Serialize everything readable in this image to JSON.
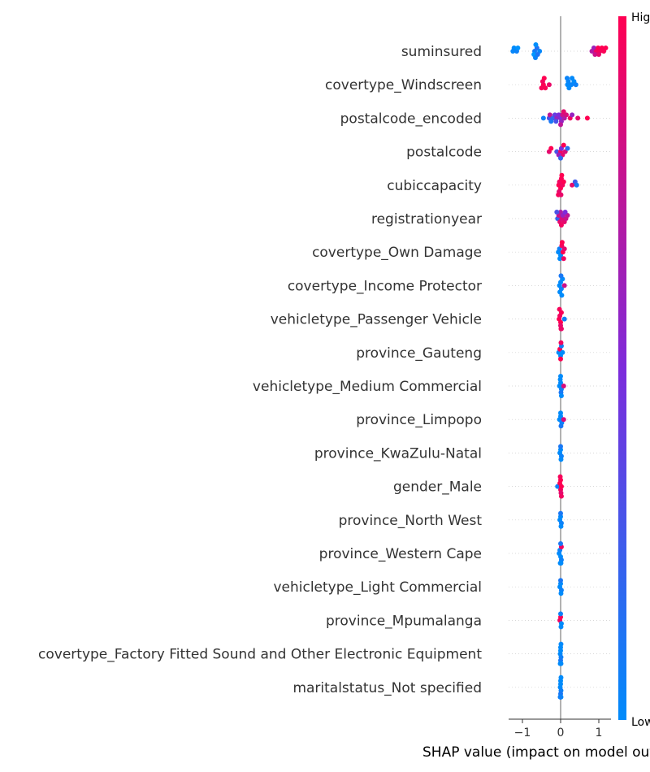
{
  "chart_data": {
    "type": "scatter",
    "subtype": "beeswarm",
    "xlabel": "SHAP value (impact on model output)",
    "xlim": [
      -1.35,
      1.35
    ],
    "xticks": [
      -1,
      0,
      1
    ],
    "xtick_labels": [
      "−1",
      "0",
      "1"
    ],
    "zero_line": true,
    "grid": false,
    "colorbar": {
      "high_label": "High",
      "low_label": "Low",
      "high_color": "#ff0052",
      "mid_color": "#7d2bdb",
      "low_color": "#008bfb",
      "placement": "right"
    },
    "features": [
      {
        "name": "suminsured",
        "points": [
          [
            -1.15,
            0.05
          ],
          [
            -1.22,
            0.0
          ],
          [
            -1.12,
            -0.04
          ],
          [
            -1.25,
            0.02
          ],
          [
            -0.68,
            0.08
          ],
          [
            -0.62,
            0.14
          ],
          [
            -0.55,
            0.02
          ],
          [
            -0.7,
            -0.06
          ],
          [
            -0.65,
            -0.02
          ],
          [
            -0.6,
            0.12
          ],
          [
            -0.66,
            0.04
          ],
          [
            0.82,
            0.7
          ],
          [
            0.87,
            0.62
          ],
          [
            0.93,
            0.95
          ],
          [
            0.98,
            1.0
          ],
          [
            1.03,
            0.96
          ],
          [
            1.08,
            1.0
          ],
          [
            1.13,
            0.98
          ],
          [
            1.18,
            1.0
          ],
          [
            0.9,
            0.8
          ],
          [
            1.0,
            0.9
          ]
        ]
      },
      {
        "name": "covertype_Windscreen",
        "points": [
          [
            -0.45,
            1.0
          ],
          [
            -0.47,
            0.95
          ],
          [
            -0.4,
            0.98
          ],
          [
            -0.43,
            1.0
          ],
          [
            -0.3,
            0.92
          ],
          [
            -0.5,
            0.97
          ],
          [
            0.18,
            0.0
          ],
          [
            0.2,
            0.02
          ],
          [
            0.28,
            0.03
          ],
          [
            0.35,
            0.0
          ],
          [
            0.4,
            0.05
          ],
          [
            0.22,
            0.0
          ],
          [
            0.3,
            0.01
          ],
          [
            0.17,
            0.04
          ]
        ]
      },
      {
        "name": "postalcode_encoded",
        "points": [
          [
            -0.45,
            0.05
          ],
          [
            -0.3,
            0.3
          ],
          [
            -0.28,
            0.75
          ],
          [
            -0.25,
            0.1
          ],
          [
            -0.2,
            0.2
          ],
          [
            -0.15,
            0.4
          ],
          [
            -0.1,
            0.6
          ],
          [
            -0.05,
            0.5
          ],
          [
            0.0,
            0.5
          ],
          [
            0.02,
            0.6
          ],
          [
            0.05,
            0.8
          ],
          [
            0.08,
            0.9
          ],
          [
            0.1,
            0.7
          ],
          [
            0.15,
            0.85
          ],
          [
            0.25,
            0.95
          ],
          [
            0.3,
            0.6
          ],
          [
            0.45,
            0.9
          ],
          [
            0.7,
            1.0
          ],
          [
            -0.12,
            0.3
          ],
          [
            0.0,
            0.75
          ]
        ]
      },
      {
        "name": "postalcode",
        "points": [
          [
            -0.3,
            0.9
          ],
          [
            -0.25,
            1.0
          ],
          [
            -0.1,
            0.3
          ],
          [
            0.0,
            0.95
          ],
          [
            0.02,
            0.5
          ],
          [
            0.05,
            0.9
          ],
          [
            0.08,
            1.0
          ],
          [
            0.12,
            0.85
          ],
          [
            0.18,
            0.15
          ],
          [
            -0.05,
            0.6
          ],
          [
            0.0,
            0.2
          ]
        ]
      },
      {
        "name": "cubiccapacity",
        "points": [
          [
            -0.05,
            1.0
          ],
          [
            -0.03,
            0.95
          ],
          [
            0.0,
            1.0
          ],
          [
            0.02,
            0.98
          ],
          [
            -0.04,
            0.9
          ],
          [
            0.03,
            1.0
          ],
          [
            0.05,
            0.95
          ],
          [
            0.08,
            1.0
          ],
          [
            0.3,
            0.9
          ],
          [
            0.38,
            0.25
          ],
          [
            0.42,
            0.1
          ],
          [
            -0.06,
            0.97
          ],
          [
            0.01,
            0.92
          ]
        ]
      },
      {
        "name": "registrationyear",
        "points": [
          [
            -0.08,
            0.2
          ],
          [
            -0.05,
            0.8
          ],
          [
            -0.02,
            0.9
          ],
          [
            0.0,
            0.7
          ],
          [
            0.03,
            0.85
          ],
          [
            0.06,
            0.6
          ],
          [
            0.1,
            0.9
          ],
          [
            0.14,
            0.8
          ],
          [
            0.18,
            0.75
          ],
          [
            -0.1,
            0.3
          ],
          [
            0.02,
            0.95
          ],
          [
            0.12,
            0.5
          ]
        ]
      },
      {
        "name": "covertype_Own Damage",
        "points": [
          [
            -0.06,
            0.0
          ],
          [
            -0.03,
            0.05
          ],
          [
            0.0,
            0.0
          ],
          [
            0.03,
            0.95
          ],
          [
            0.06,
            1.0
          ],
          [
            0.1,
            0.9
          ],
          [
            -0.02,
            0.0
          ],
          [
            0.04,
            1.0
          ],
          [
            0.08,
            0.95
          ]
        ]
      },
      {
        "name": "covertype_Income Protector",
        "points": [
          [
            -0.03,
            0.0
          ],
          [
            0.0,
            0.0
          ],
          [
            0.02,
            0.05
          ],
          [
            0.05,
            0.0
          ],
          [
            0.1,
            0.8
          ],
          [
            -0.02,
            0.0
          ],
          [
            0.01,
            0.1
          ],
          [
            0.03,
            0.0
          ]
        ]
      },
      {
        "name": "vehicletype_Passenger Vehicle",
        "points": [
          [
            -0.04,
            1.0
          ],
          [
            -0.02,
            0.95
          ],
          [
            0.0,
            1.0
          ],
          [
            0.02,
            0.98
          ],
          [
            0.0,
            0.9
          ],
          [
            0.1,
            0.05
          ],
          [
            -0.03,
            0.97
          ],
          [
            0.01,
            1.0
          ],
          [
            0.02,
            0.92
          ]
        ]
      },
      {
        "name": "province_Gauteng",
        "points": [
          [
            -0.05,
            0.0
          ],
          [
            -0.02,
            1.0
          ],
          [
            0.0,
            0.0
          ],
          [
            0.02,
            0.05
          ],
          [
            0.05,
            0.0
          ],
          [
            0.0,
            1.0
          ],
          [
            0.01,
            0.95
          ]
        ]
      },
      {
        "name": "vehicletype_Medium Commercial",
        "points": [
          [
            -0.03,
            0.0
          ],
          [
            0.0,
            0.0
          ],
          [
            0.02,
            0.05
          ],
          [
            0.08,
            0.85
          ],
          [
            -0.01,
            0.0
          ],
          [
            0.01,
            0.1
          ],
          [
            0.0,
            0.0
          ],
          [
            0.02,
            0.0
          ]
        ]
      },
      {
        "name": "province_Limpopo",
        "points": [
          [
            -0.03,
            0.0
          ],
          [
            0.0,
            0.0
          ],
          [
            0.03,
            0.05
          ],
          [
            0.08,
            0.85
          ],
          [
            0.0,
            0.0
          ],
          [
            0.01,
            0.1
          ]
        ]
      },
      {
        "name": "province_KwaZulu-Natal",
        "points": [
          [
            -0.02,
            0.0
          ],
          [
            0.0,
            0.0
          ],
          [
            0.02,
            0.05
          ],
          [
            0.0,
            0.1
          ],
          [
            0.01,
            0.0
          ]
        ]
      },
      {
        "name": "gender_Male",
        "points": [
          [
            -0.08,
            0.05
          ],
          [
            -0.02,
            1.0
          ],
          [
            0.0,
            0.95
          ],
          [
            0.02,
            1.0
          ],
          [
            0.0,
            1.0
          ],
          [
            0.01,
            0.9
          ],
          [
            -0.01,
            0.97
          ],
          [
            0.02,
            0.95
          ]
        ]
      },
      {
        "name": "province_North West",
        "points": [
          [
            -0.02,
            0.0
          ],
          [
            0.0,
            0.0
          ],
          [
            0.02,
            0.05
          ],
          [
            0.0,
            0.1
          ],
          [
            0.01,
            0.0
          ]
        ]
      },
      {
        "name": "province_Western Cape",
        "points": [
          [
            -0.04,
            0.0
          ],
          [
            -0.02,
            0.05
          ],
          [
            0.0,
            0.0
          ],
          [
            0.02,
            0.95
          ],
          [
            0.02,
            0.05
          ],
          [
            0.0,
            0.1
          ],
          [
            0.01,
            0.0
          ],
          [
            -0.01,
            0.0
          ]
        ]
      },
      {
        "name": "vehicletype_Light Commercial",
        "points": [
          [
            -0.02,
            0.0
          ],
          [
            0.0,
            0.0
          ],
          [
            0.02,
            0.05
          ],
          [
            0.0,
            0.1
          ],
          [
            0.01,
            0.0
          ]
        ]
      },
      {
        "name": "province_Mpumalanga",
        "points": [
          [
            -0.02,
            0.95
          ],
          [
            0.0,
            1.0
          ],
          [
            0.02,
            0.0
          ],
          [
            0.0,
            0.05
          ],
          [
            0.01,
            0.0
          ]
        ]
      },
      {
        "name": "covertype_Factory Fitted Sound and Other Electronic Equipment",
        "points": [
          [
            -0.01,
            0.0
          ],
          [
            0.0,
            0.0
          ],
          [
            0.01,
            0.05
          ],
          [
            0.0,
            0.0
          ],
          [
            0.0,
            0.1
          ],
          [
            0.01,
            0.0
          ],
          [
            -0.01,
            0.0
          ],
          [
            0.0,
            0.0
          ],
          [
            0.0,
            0.0
          ],
          [
            0.01,
            0.0
          ]
        ]
      },
      {
        "name": "maritalstatus_Not specified",
        "points": [
          [
            -0.01,
            0.0
          ],
          [
            0.0,
            0.0
          ],
          [
            0.01,
            0.05
          ],
          [
            0.0,
            0.0
          ],
          [
            0.0,
            0.1
          ],
          [
            0.01,
            0.0
          ],
          [
            -0.01,
            0.0
          ],
          [
            0.0,
            0.0
          ],
          [
            0.0,
            0.0
          ],
          [
            0.01,
            0.0
          ],
          [
            0.0,
            0.0
          ],
          [
            -0.01,
            0.05
          ]
        ]
      }
    ]
  }
}
